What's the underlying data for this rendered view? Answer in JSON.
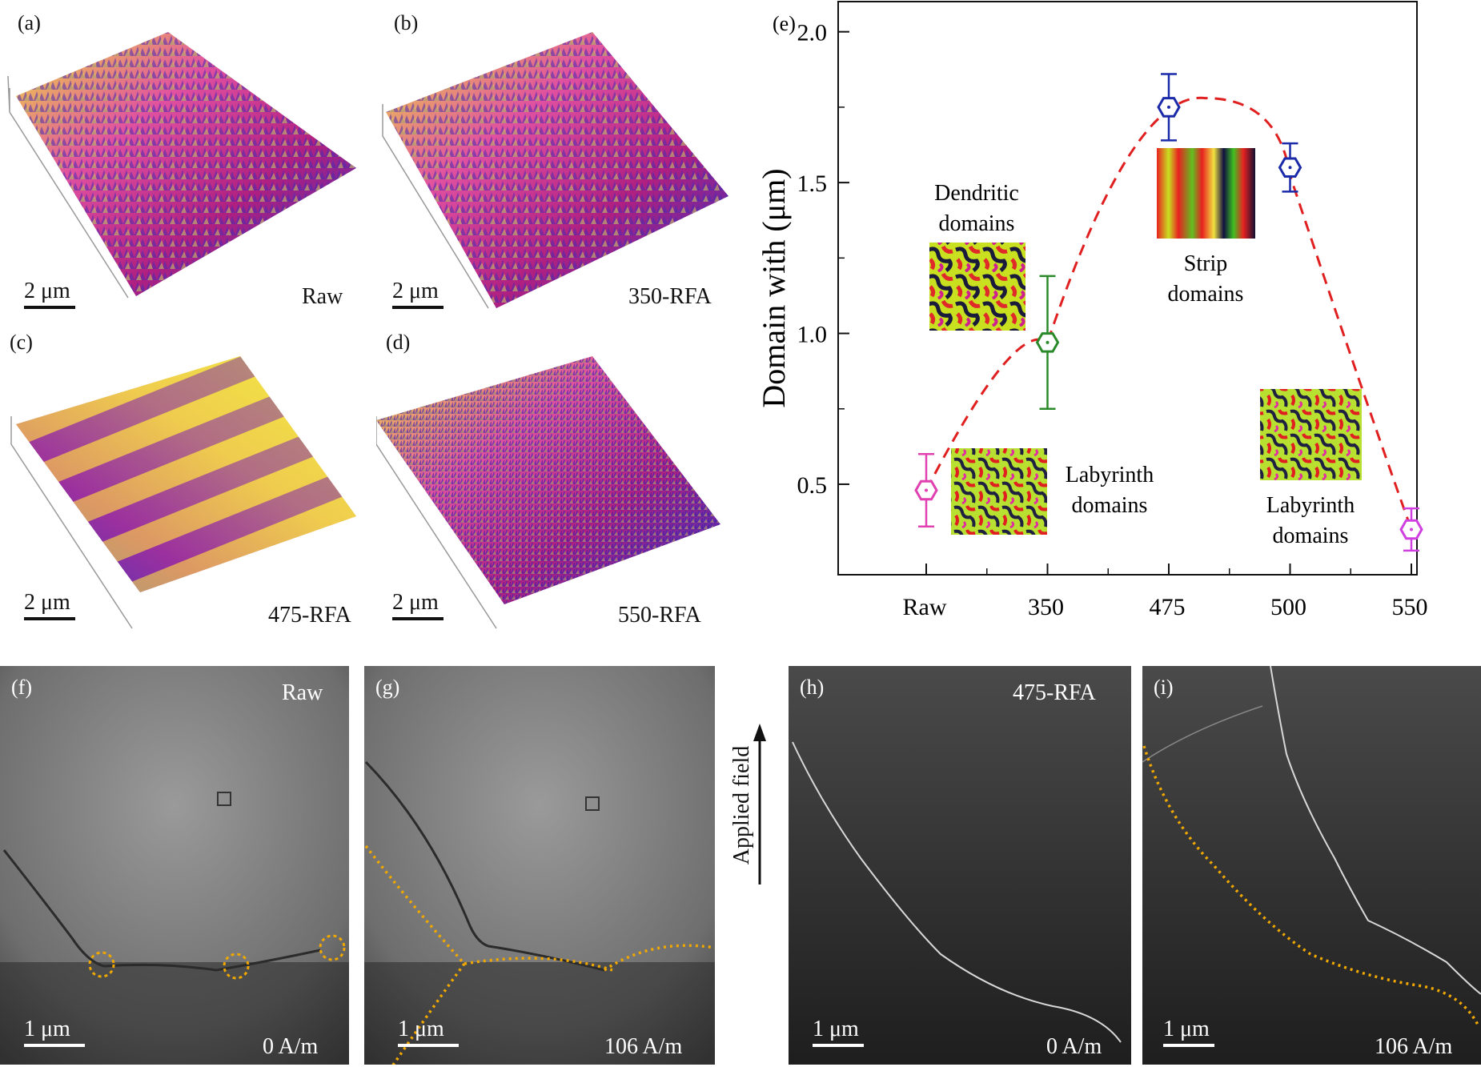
{
  "panels": {
    "a": {
      "label": "(a)",
      "sample": "Raw",
      "scale": "2 μm"
    },
    "b": {
      "label": "(b)",
      "sample": "350-RFA",
      "scale": "2 μm"
    },
    "c": {
      "label": "(c)",
      "sample": "475-RFA",
      "scale": "2 μm"
    },
    "d": {
      "label": "(d)",
      "sample": "550-RFA",
      "scale": "2 μm"
    },
    "f": {
      "label": "(f)",
      "sample": "Raw",
      "field": "0 A/m",
      "scale": "1 μm"
    },
    "g": {
      "label": "(g)",
      "field": "106 A/m",
      "scale": "1 μm"
    },
    "h": {
      "label": "(h)",
      "sample": "475-RFA",
      "field": "0 A/m",
      "scale": "1 μm"
    },
    "i": {
      "label": "(i)",
      "field": "106 A/m",
      "scale": "1 μm"
    }
  },
  "applied_field_label": "Applied field",
  "colors": {
    "trend": "#e02020",
    "raw": "#e040b0",
    "t350": "#2a8a2a",
    "t475": "#1a2aa8",
    "t550": "#d040e0",
    "highlight": "#f0a800"
  },
  "chart_data": {
    "type": "scatter",
    "panel_label": "(e)",
    "title": "",
    "xlabel": "",
    "ylabel": "Domain with (μm)",
    "categories": [
      "Raw",
      "350",
      "475",
      "500",
      "550"
    ],
    "ylim": [
      0.2,
      2.1
    ],
    "yticks": [
      "0.5",
      "1.0",
      "1.5",
      "2.0"
    ],
    "series": [
      {
        "name": "Domain width",
        "values": [
          0.48,
          0.97,
          1.75,
          1.55,
          0.35
        ],
        "errors": [
          0.12,
          0.22,
          0.11,
          0.08,
          0.07
        ]
      }
    ],
    "annotations": [
      {
        "line1": "Dendritic",
        "line2": "domains"
      },
      {
        "line1": "Strip",
        "line2": "domains"
      },
      {
        "line1": "Labyrinth",
        "line2": "domains"
      },
      {
        "line1": "Labyrinth",
        "line2": "domains"
      }
    ]
  }
}
